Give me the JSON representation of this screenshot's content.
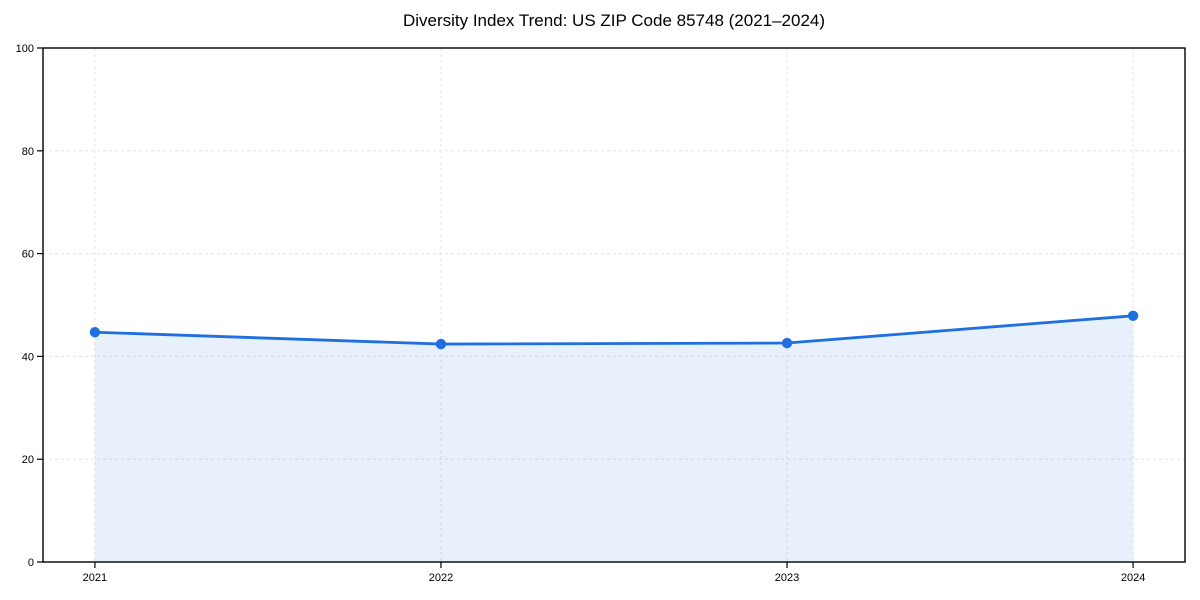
{
  "title": "Diversity Index Trend: US ZIP Code 85748 (2021–2024)",
  "colors": {
    "line": "#1f6fe0",
    "marker": "#1f6fe0",
    "fill": "rgba(31,111,224,0.10)",
    "grid": "#e4e4e4",
    "axis": "#000000",
    "text": "#000000",
    "background": "#ffffff"
  },
  "chart_data": {
    "type": "area",
    "title": "Diversity Index Trend: US ZIP Code 85748 (2021–2024)",
    "x": [
      2021,
      2022,
      2023,
      2024
    ],
    "xticks": [
      2021,
      2022,
      2023,
      2024
    ],
    "series": [
      {
        "name": "Diversity Index",
        "values": [
          44.7,
          42.4,
          42.6,
          47.9
        ]
      }
    ],
    "xlabel": "",
    "ylabel": "",
    "ylim": [
      0,
      100
    ],
    "yticks": [
      0,
      20,
      40,
      60,
      80,
      100
    ],
    "x_margin_frac": 0.05,
    "grid": "dashed",
    "legend": "none",
    "marker": "circle"
  }
}
